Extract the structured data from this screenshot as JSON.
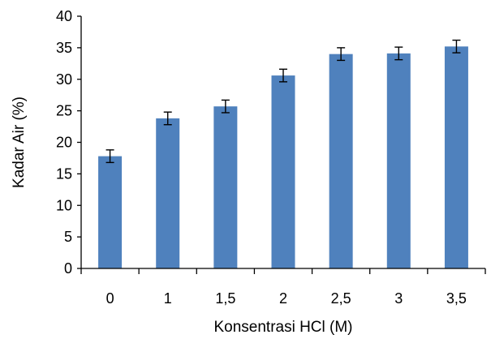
{
  "chart_data": {
    "type": "bar",
    "xlabel": "Konsentrasi HCl (M)",
    "ylabel": "Kadar Air (%)",
    "categories": [
      "0",
      "1",
      "1,5",
      "2",
      "2,5",
      "3",
      "3,5"
    ],
    "values": [
      17.8,
      23.8,
      25.7,
      30.6,
      34.0,
      34.1,
      35.2
    ],
    "error": [
      1.0,
      1.0,
      1.0,
      1.0,
      1.0,
      1.0,
      1.0
    ],
    "ylim": [
      0,
      40
    ],
    "yticks": [
      "0",
      "5",
      "10",
      "15",
      "20",
      "25",
      "30",
      "35",
      "40"
    ],
    "grid": false,
    "legend": "none",
    "colors": {
      "bar": "#4f81bd",
      "error_bar": "#000000",
      "axis": "#000000"
    }
  }
}
